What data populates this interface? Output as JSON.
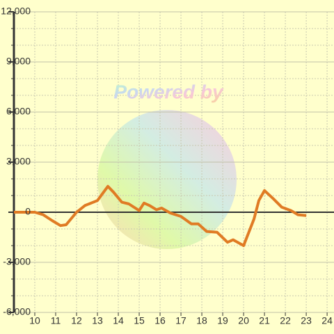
{
  "chart_data": {
    "type": "line",
    "watermark": "Powered by",
    "x": [
      9,
      10,
      10.4,
      10.83,
      11.23,
      11.5,
      12,
      12.4,
      13,
      13.5,
      13.77,
      14.17,
      14.5,
      15,
      15.23,
      15.5,
      15.83,
      16.07,
      16.5,
      17,
      17.5,
      17.83,
      18.23,
      18.73,
      19.23,
      19.5,
      20,
      20.5,
      20.73,
      21,
      21.43,
      21.83,
      22.27,
      22.6,
      23
    ],
    "series": [
      {
        "color": "#e07b24",
        "values": [
          0,
          0,
          -150,
          -500,
          -800,
          -750,
          0,
          400,
          700,
          1550,
          1200,
          600,
          500,
          100,
          550,
          400,
          150,
          250,
          -50,
          -250,
          -700,
          -700,
          -1150,
          -1200,
          -1800,
          -1650,
          -2000,
          -400,
          700,
          1300,
          800,
          300,
          100,
          -150,
          -200
        ]
      }
    ],
    "xlim": [
      9,
      24.33
    ],
    "xticks": [
      10,
      11,
      12,
      13,
      14,
      15,
      16,
      17,
      18,
      19,
      20,
      21,
      22,
      23,
      24
    ],
    "ylim": [
      -6000,
      12000
    ],
    "yticks": [
      {
        "value": -6000,
        "label": "-6,000"
      },
      {
        "value": -3000,
        "label": "-3,000"
      },
      0,
      {
        "value": 3000,
        "label": "3,000"
      },
      {
        "value": 6000,
        "label": "6,000"
      },
      {
        "value": 9000,
        "label": "9,000"
      },
      {
        "value": 12000,
        "label": "12,000"
      }
    ],
    "yminorticks": [
      -5000,
      -4000,
      -2000,
      -1000,
      1000,
      2000,
      4000,
      5000,
      7000,
      8000,
      10000,
      11000
    ],
    "grid": true
  }
}
